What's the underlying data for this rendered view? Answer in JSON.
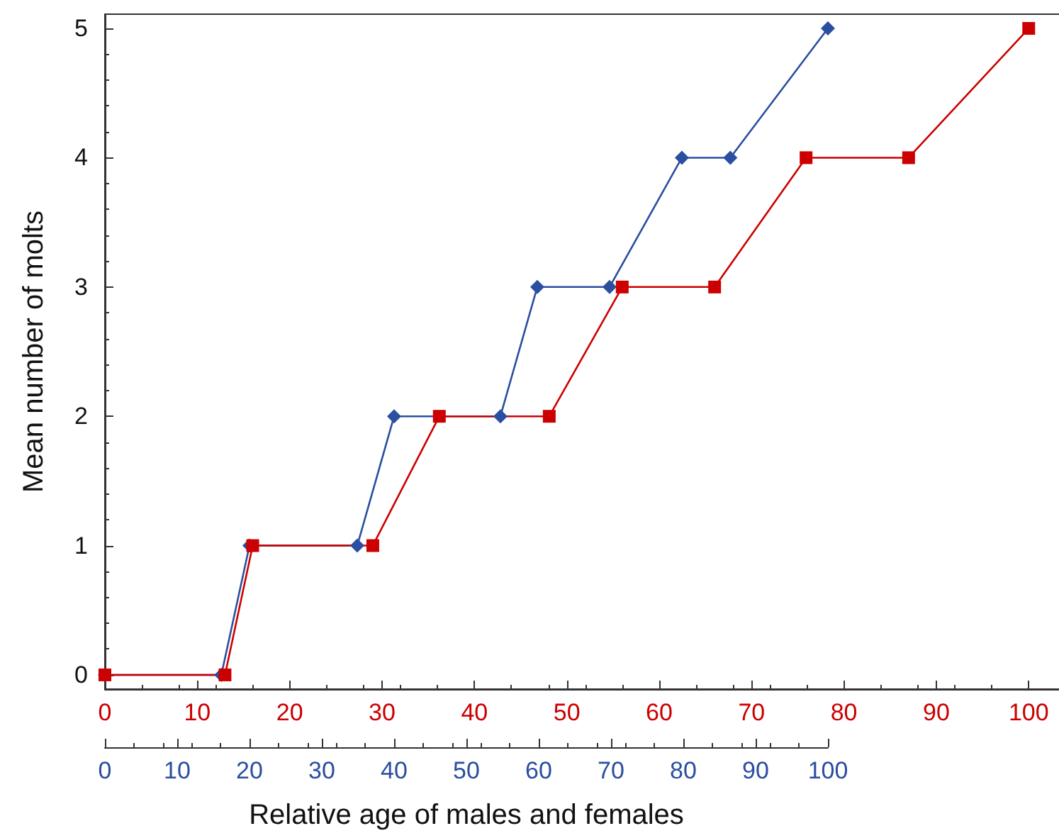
{
  "chart_data": {
    "type": "line",
    "xlabel": "Relative age of males and females",
    "ylabel": "Mean number of molts",
    "xlim": [
      0,
      104.2
    ],
    "xticks": [
      0,
      10,
      20,
      30,
      40,
      50,
      60,
      70,
      80,
      90,
      100
    ],
    "x2lim": [
      0,
      100
    ],
    "x2ticks": [
      0,
      10,
      20,
      30,
      40,
      50,
      60,
      70,
      80,
      90,
      100
    ],
    "ylim": [
      -0.11,
      5.11
    ],
    "yticks": [
      0,
      1,
      2,
      3,
      4,
      5
    ],
    "grid": false,
    "series": [
      {
        "color": "#2a4ea0",
        "marker": "diamond",
        "axis": "x2",
        "x": [
          0,
          16.1,
          20,
          34.9,
          40,
          54.7,
          59.8,
          69.8,
          79.8,
          86.5,
          100
        ],
        "values": [
          0,
          0,
          1,
          1,
          2,
          2,
          3,
          3,
          4,
          4,
          5
        ]
      },
      {
        "color": "#cc0000",
        "marker": "square",
        "x": [
          0,
          13,
          16,
          29,
          36.2,
          48.1,
          56,
          66,
          75.9,
          87,
          100
        ],
        "values": [
          0,
          0,
          1,
          1,
          2,
          2,
          3,
          3,
          4,
          4,
          5
        ]
      }
    ]
  }
}
